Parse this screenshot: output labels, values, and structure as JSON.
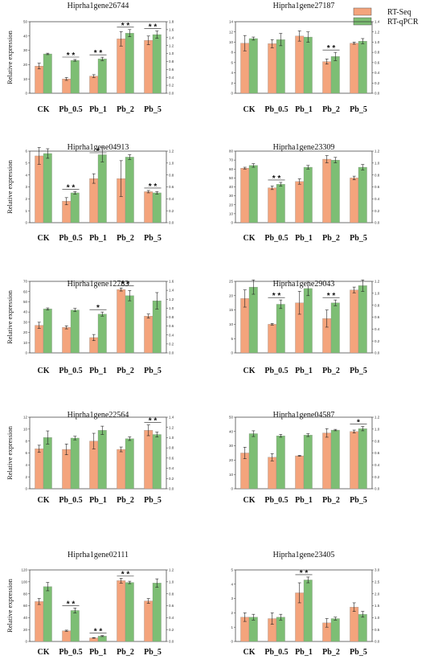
{
  "legend": {
    "items": [
      {
        "label": "RT-Seq",
        "color": "#f4a47c"
      },
      {
        "label": "RT-qPCR",
        "color": "#7dbe74"
      }
    ],
    "placement": "top-right"
  },
  "colors": {
    "rtseq": "#f4a47c",
    "rtqpcr": "#7dbe74"
  },
  "chart_data": [
    {
      "type": "bar",
      "title": "Hiprha1gene26744",
      "ylabel": "Relative expression",
      "categories": [
        "CK",
        "Pb_0.5",
        "Pb_1",
        "Pb_2",
        "Pb_5"
      ],
      "ylim": [
        0,
        50
      ],
      "y_ticks": [
        "0",
        "10",
        "20",
        "30",
        "40",
        "50"
      ],
      "ylim_right": [
        0,
        1.8
      ],
      "y_ticks_right": [
        "0.0",
        "0.2",
        "0.4",
        "0.6",
        "0.8",
        "1.0",
        "1.2",
        "1.4",
        "1.6",
        "1.8"
      ],
      "series": [
        {
          "name": "RT-Seq",
          "values": [
            19,
            10,
            12,
            38,
            37
          ],
          "errors": [
            2,
            1,
            1,
            5,
            3
          ]
        },
        {
          "name": "RT-qPCR",
          "values": [
            27.5,
            23,
            24,
            42,
            41
          ],
          "errors": [
            0.5,
            0.6,
            1.2,
            2.5,
            2.5
          ]
        }
      ],
      "significance": [
        "",
        "* *",
        "* *",
        "* *",
        "* *"
      ]
    },
    {
      "type": "bar",
      "title": "Hiprha1gene27187",
      "ylabel": "",
      "categories": [
        "CK",
        "Pb_0.5",
        "Pb_1",
        "Pb_2",
        "Pb_5"
      ],
      "ylim": [
        0,
        14
      ],
      "y_ticks": [
        "0",
        "2",
        "4",
        "6",
        "8",
        "10",
        "12",
        "14"
      ],
      "ylim_right": [
        0,
        1.4
      ],
      "y_ticks_right": [
        "0.0",
        "0.2",
        "0.4",
        "0.6",
        "0.8",
        "1.0",
        "1.2",
        "1.4"
      ],
      "series": [
        {
          "name": "RT-Seq",
          "values": [
            9.8,
            9.7,
            11.2,
            6.2,
            9.8
          ],
          "errors": [
            1.5,
            0.8,
            1,
            0.5,
            0.2
          ]
        },
        {
          "name": "RT-qPCR",
          "values": [
            10.7,
            10.5,
            11,
            7.2,
            10.2
          ],
          "errors": [
            0.3,
            1.2,
            1,
            0.8,
            0.5
          ]
        }
      ],
      "significance": [
        "",
        "",
        "",
        "* *",
        ""
      ]
    },
    {
      "type": "bar",
      "title": "Hiprha1gene04913",
      "ylabel": "Relative expression",
      "categories": [
        "CK",
        "Pb_0.5",
        "Pb_1",
        "Pb_2",
        "Pb_5"
      ],
      "ylim": [
        0,
        6
      ],
      "y_ticks": [
        "0",
        "1",
        "2",
        "3",
        "4",
        "5",
        "6"
      ],
      "ylim_right": [
        0,
        1.2
      ],
      "y_ticks_right": [
        "0.0",
        "0.2",
        "0.4",
        "0.6",
        "0.8",
        "1.0",
        "1.2"
      ],
      "series": [
        {
          "name": "RT-Seq",
          "values": [
            5.6,
            1.8,
            3.7,
            3.7,
            2.6
          ],
          "errors": [
            0.7,
            0.3,
            0.4,
            1.5,
            0.1
          ]
        },
        {
          "name": "RT-qPCR",
          "values": [
            5.8,
            2.5,
            5.7,
            5.5,
            2.5
          ],
          "errors": [
            0.4,
            0.1,
            0.6,
            0.2,
            0.1
          ]
        }
      ],
      "significance": [
        "",
        "* *",
        "*",
        "",
        "* *"
      ]
    },
    {
      "type": "bar",
      "title": "Hiprha1gene23309",
      "ylabel": "",
      "categories": [
        "CK",
        "Pb_0.5",
        "Pb_1",
        "Pb_2",
        "Pb_5"
      ],
      "ylim": [
        0,
        80
      ],
      "y_ticks": [
        "0",
        "10",
        "20",
        "30",
        "40",
        "50",
        "60",
        "70",
        "80"
      ],
      "ylim_right": [
        0,
        1.2
      ],
      "y_ticks_right": [
        "0.0",
        "0.2",
        "0.4",
        "0.6",
        "0.8",
        "1.0",
        "1.2"
      ],
      "series": [
        {
          "name": "RT-Seq",
          "values": [
            61,
            39,
            46,
            71,
            50
          ],
          "errors": [
            1,
            2,
            3,
            4,
            2
          ]
        },
        {
          "name": "RT-qPCR",
          "values": [
            64,
            43,
            62,
            70,
            62
          ],
          "errors": [
            2,
            2,
            2,
            3,
            3
          ]
        }
      ],
      "significance": [
        "",
        "* *",
        "",
        "",
        ""
      ]
    },
    {
      "type": "bar",
      "title": "Hiprha1gene12783",
      "ylabel": "Relative expression",
      "categories": [
        "CK",
        "Pb_0.5",
        "Pb_1",
        "Pb_2",
        "Pb_5"
      ],
      "ylim": [
        0,
        70
      ],
      "y_ticks": [
        "0",
        "10",
        "20",
        "30",
        "40",
        "50",
        "60",
        "70"
      ],
      "ylim_right": [
        0,
        1.6
      ],
      "y_ticks_right": [
        "0.0",
        "0.2",
        "0.4",
        "0.6",
        "0.8",
        "1.0",
        "1.2",
        "1.4",
        "1.6"
      ],
      "series": [
        {
          "name": "RT-Seq",
          "values": [
            27,
            25,
            15,
            62,
            36
          ],
          "errors": [
            3,
            1.5,
            3,
            1.5,
            2
          ]
        },
        {
          "name": "RT-qPCR",
          "values": [
            43,
            42,
            38,
            56,
            51
          ],
          "errors": [
            1,
            1.5,
            2,
            5,
            8
          ]
        }
      ],
      "significance": [
        "",
        "",
        "*",
        "* *",
        ""
      ]
    },
    {
      "type": "bar",
      "title": "Hiprha1gene29043",
      "ylabel": "",
      "categories": [
        "CK",
        "Pb_0.5",
        "Pb_1",
        "Pb_2",
        "Pb_5"
      ],
      "ylim": [
        0,
        25
      ],
      "y_ticks": [
        "0",
        "5",
        "10",
        "15",
        "20",
        "25"
      ],
      "ylim_right": [
        0,
        1.2
      ],
      "y_ticks_right": [
        "0.0",
        "0.2",
        "0.4",
        "0.6",
        "0.8",
        "1.0",
        "1.2"
      ],
      "series": [
        {
          "name": "RT-Seq",
          "values": [
            19,
            10,
            17.5,
            12,
            22
          ],
          "errors": [
            3,
            0.3,
            4,
            3,
            1
          ]
        },
        {
          "name": "RT-qPCR",
          "values": [
            23,
            17,
            22.5,
            17.5,
            23.5
          ],
          "errors": [
            2.5,
            1.5,
            2.5,
            1,
            2
          ]
        }
      ],
      "significance": [
        "",
        "* *",
        "",
        "* *",
        ""
      ]
    },
    {
      "type": "bar",
      "title": "Hiprha1gene22564",
      "ylabel": "Relative expression",
      "categories": [
        "CK",
        "Pb_0.5",
        "Pb_1",
        "Pb_2",
        "Pb_5"
      ],
      "ylim": [
        0,
        12
      ],
      "y_ticks": [
        "0",
        "2",
        "4",
        "6",
        "8",
        "10",
        "12"
      ],
      "ylim_right": [
        0,
        1.4
      ],
      "y_ticks_right": [
        "0.0",
        "0.2",
        "0.4",
        "0.6",
        "0.8",
        "1.0",
        "1.2",
        "1.4"
      ],
      "series": [
        {
          "name": "RT-Seq",
          "values": [
            6.7,
            6.6,
            8,
            6.6,
            9.8
          ],
          "errors": [
            0.6,
            0.9,
            1.3,
            0.4,
            0.9
          ]
        },
        {
          "name": "RT-qPCR",
          "values": [
            8.6,
            8.5,
            9.8,
            8.4,
            9.1
          ],
          "errors": [
            1.1,
            0.3,
            0.7,
            0.3,
            0.4
          ]
        }
      ],
      "significance": [
        "",
        "",
        "",
        "",
        "* *"
      ]
    },
    {
      "type": "bar",
      "title": "Hiprha1gene04587",
      "ylabel": "",
      "categories": [
        "CK",
        "Pb_0.5",
        "Pb_1",
        "Pb_2",
        "Pb_5"
      ],
      "ylim": [
        0,
        50
      ],
      "y_ticks": [
        "0",
        "10",
        "20",
        "30",
        "40",
        "50"
      ],
      "ylim_right": [
        0,
        1.2
      ],
      "y_ticks_right": [
        "0.0",
        "0.2",
        "0.4",
        "0.6",
        "0.8",
        "1.0",
        "1.2"
      ],
      "series": [
        {
          "name": "RT-Seq",
          "values": [
            25,
            22,
            23,
            39,
            40
          ],
          "errors": [
            4,
            2.5,
            0.3,
            3,
            1
          ]
        },
        {
          "name": "RT-qPCR",
          "values": [
            38.5,
            37,
            37.5,
            41,
            42
          ],
          "errors": [
            2,
            1,
            1,
            0.5,
            1.5
          ]
        }
      ],
      "significance": [
        "",
        "",
        "",
        "",
        "*"
      ]
    },
    {
      "type": "bar",
      "title": "Hiprha1gene02111",
      "ylabel": "Relative expression",
      "categories": [
        "CK",
        "Pb_0.5",
        "Pb_1",
        "Pb_2",
        "Pb_5"
      ],
      "ylim": [
        0,
        120
      ],
      "y_ticks": [
        "0",
        "20",
        "40",
        "60",
        "80",
        "100",
        "120"
      ],
      "ylim_right": [
        0,
        1.2
      ],
      "y_ticks_right": [
        "0.0",
        "0.2",
        "0.4",
        "0.6",
        "0.8",
        "1.0",
        "1.2"
      ],
      "series": [
        {
          "name": "RT-Seq",
          "values": [
            67,
            18,
            6,
            102,
            68
          ],
          "errors": [
            5,
            1,
            0.5,
            4,
            4
          ]
        },
        {
          "name": "RT-qPCR",
          "values": [
            92,
            52,
            9,
            99,
            98
          ],
          "errors": [
            7,
            4,
            0.8,
            2,
            7
          ]
        }
      ],
      "significance": [
        "",
        "* *",
        "* *",
        "* *",
        ""
      ]
    },
    {
      "type": "bar",
      "title": "Hiprha1gene23405",
      "ylabel": "",
      "categories": [
        "CK",
        "Pb_0.5",
        "Pb_1",
        "Pb_2",
        "Pb_5"
      ],
      "ylim": [
        0,
        5
      ],
      "y_ticks": [
        "0",
        "1",
        "2",
        "3",
        "4",
        "5"
      ],
      "ylim_right": [
        0,
        3.0
      ],
      "y_ticks_right": [
        "0.0",
        "0.5",
        "1.0",
        "1.5",
        "2.0",
        "2.5",
        "3.0"
      ],
      "series": [
        {
          "name": "RT-Seq",
          "values": [
            1.7,
            1.6,
            3.4,
            1.3,
            2.4
          ],
          "errors": [
            0.3,
            0.4,
            0.7,
            0.3,
            0.3
          ]
        },
        {
          "name": "RT-qPCR",
          "values": [
            1.7,
            1.7,
            4.3,
            1.6,
            1.9
          ],
          "errors": [
            0.2,
            0.2,
            0.2,
            0.1,
            0.2
          ]
        }
      ],
      "significance": [
        "",
        "",
        "* *",
        "",
        ""
      ]
    }
  ]
}
